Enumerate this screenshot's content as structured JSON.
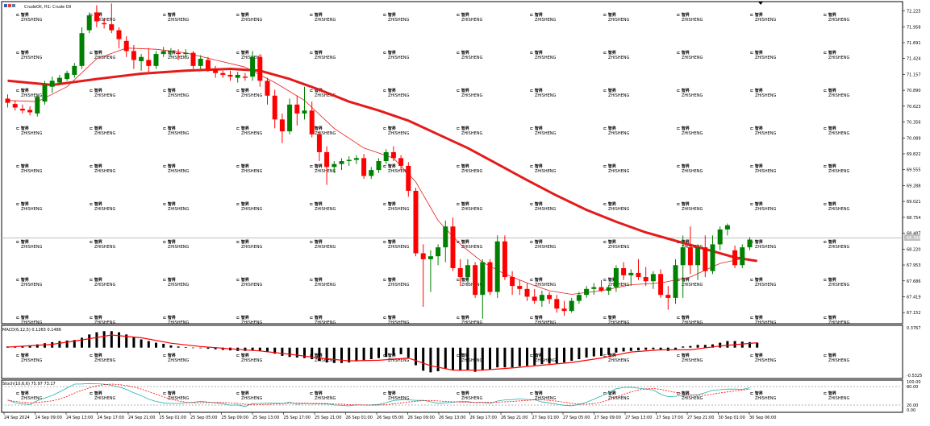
{
  "header": {
    "symbol_label": "CrudeOil, H1:  Crude Oil",
    "macd_label": "MACD(6,12,5) 0.1265 0.1486",
    "stoch_label": "Stoch(10,6,6) 75.97 73.17"
  },
  "watermark": {
    "text": "智昇",
    "subtext": "ZHISHENG"
  },
  "chart_data": {
    "type": "candlestick",
    "symbol": "CrudeOil",
    "timeframe": "H1",
    "ylim": [
      67.06,
      72.3
    ],
    "price_ticks": [
      "72.225",
      "71.958",
      "71.691",
      "71.424",
      "71.157",
      "70.890",
      "70.623",
      "70.356",
      "70.089",
      "69.822",
      "69.555",
      "69.288",
      "69.021",
      "68.754",
      "68.487",
      "68.220",
      "67.953",
      "67.686",
      "67.419",
      "67.152"
    ],
    "current_price": 68.39,
    "current_price_label": "68.390",
    "bull_color": "#008000",
    "bear_color": "#ff0000",
    "ma_color": "#e41b1b",
    "time_labels": [
      "24 Sep 2024",
      "24 Sep 09:00",
      "24 Sep 13:00",
      "24 Sep 17:00",
      "24 Sep 21:00",
      "25 Sep 01:00",
      "25 Sep 05:00",
      "25 Sep 09:00",
      "25 Sep 13:00",
      "25 Sep 17:00",
      "25 Sep 21:00",
      "26 Sep 01:00",
      "26 Sep 05:00",
      "26 Sep 09:00",
      "26 Sep 13:00",
      "26 Sep 17:00",
      "26 Sep 21:00",
      "27 Sep 01:00",
      "27 Sep 05:00",
      "27 Sep 09:00",
      "27 Sep 13:00",
      "27 Sep 17:00",
      "27 Sep 21:00",
      "30 Sep 01:00",
      "30 Sep 06:00"
    ],
    "candles": [
      {
        "o": 70.75,
        "h": 70.82,
        "l": 70.6,
        "c": 70.68
      },
      {
        "o": 70.66,
        "h": 70.72,
        "l": 70.55,
        "c": 70.6
      },
      {
        "o": 70.58,
        "h": 70.65,
        "l": 70.5,
        "c": 70.55
      },
      {
        "o": 70.56,
        "h": 70.62,
        "l": 70.47,
        "c": 70.52
      },
      {
        "o": 70.5,
        "h": 70.8,
        "l": 70.45,
        "c": 70.78
      },
      {
        "o": 70.7,
        "h": 71.05,
        "l": 70.65,
        "c": 70.98
      },
      {
        "o": 70.95,
        "h": 71.12,
        "l": 70.85,
        "c": 71.05
      },
      {
        "o": 71.02,
        "h": 71.15,
        "l": 70.98,
        "c": 71.1
      },
      {
        "o": 71.08,
        "h": 71.22,
        "l": 71.05,
        "c": 71.18
      },
      {
        "o": 71.15,
        "h": 71.35,
        "l": 71.1,
        "c": 71.3
      },
      {
        "o": 71.3,
        "h": 71.95,
        "l": 71.25,
        "c": 71.85
      },
      {
        "o": 71.9,
        "h": 72.2,
        "l": 71.85,
        "c": 72.15
      },
      {
        "o": 72.2,
        "h": 72.32,
        "l": 71.95,
        "c": 72.05
      },
      {
        "o": 72.02,
        "h": 72.1,
        "l": 71.93,
        "c": 72.0
      },
      {
        "o": 72.0,
        "h": 72.35,
        "l": 71.85,
        "c": 71.9
      },
      {
        "o": 71.9,
        "h": 71.95,
        "l": 71.6,
        "c": 71.75
      },
      {
        "o": 71.72,
        "h": 71.8,
        "l": 71.45,
        "c": 71.55
      },
      {
        "o": 71.55,
        "h": 71.65,
        "l": 71.25,
        "c": 71.4
      },
      {
        "o": 71.38,
        "h": 71.5,
        "l": 71.22,
        "c": 71.45
      },
      {
        "o": 71.4,
        "h": 71.6,
        "l": 71.2,
        "c": 71.3
      },
      {
        "o": 71.3,
        "h": 71.55,
        "l": 71.25,
        "c": 71.5
      },
      {
        "o": 71.5,
        "h": 71.62,
        "l": 71.45,
        "c": 71.55
      },
      {
        "o": 71.55,
        "h": 71.6,
        "l": 71.45,
        "c": 71.55
      },
      {
        "o": 71.52,
        "h": 71.58,
        "l": 71.4,
        "c": 71.5
      },
      {
        "o": 71.5,
        "h": 71.58,
        "l": 71.45,
        "c": 71.52
      },
      {
        "o": 71.52,
        "h": 71.55,
        "l": 71.25,
        "c": 71.3
      },
      {
        "o": 71.3,
        "h": 71.48,
        "l": 71.25,
        "c": 71.42
      },
      {
        "o": 71.4,
        "h": 71.45,
        "l": 71.2,
        "c": 71.25
      },
      {
        "o": 71.25,
        "h": 71.3,
        "l": 71.1,
        "c": 71.18
      },
      {
        "o": 71.18,
        "h": 71.22,
        "l": 71.1,
        "c": 71.15
      },
      {
        "o": 71.15,
        "h": 71.22,
        "l": 71.05,
        "c": 71.12
      },
      {
        "o": 71.1,
        "h": 71.2,
        "l": 71.02,
        "c": 71.15
      },
      {
        "o": 71.12,
        "h": 71.18,
        "l": 71.05,
        "c": 71.1
      },
      {
        "o": 71.12,
        "h": 71.55,
        "l": 71.05,
        "c": 71.45
      },
      {
        "o": 71.45,
        "h": 71.5,
        "l": 70.95,
        "c": 71.05
      },
      {
        "o": 71.05,
        "h": 71.1,
        "l": 70.65,
        "c": 70.8
      },
      {
        "o": 70.8,
        "h": 70.9,
        "l": 70.25,
        "c": 70.4
      },
      {
        "o": 70.4,
        "h": 70.5,
        "l": 70.0,
        "c": 70.2
      },
      {
        "o": 70.2,
        "h": 70.75,
        "l": 70.15,
        "c": 70.65
      },
      {
        "o": 70.65,
        "h": 70.8,
        "l": 70.3,
        "c": 70.5
      },
      {
        "o": 70.5,
        "h": 70.95,
        "l": 70.4,
        "c": 70.55
      },
      {
        "o": 70.55,
        "h": 70.7,
        "l": 70.1,
        "c": 70.15
      },
      {
        "o": 70.15,
        "h": 70.2,
        "l": 69.7,
        "c": 69.85
      },
      {
        "o": 69.85,
        "h": 69.95,
        "l": 69.3,
        "c": 69.6
      },
      {
        "o": 69.6,
        "h": 69.7,
        "l": 69.5,
        "c": 69.65
      },
      {
        "o": 69.65,
        "h": 69.75,
        "l": 69.55,
        "c": 69.7
      },
      {
        "o": 69.7,
        "h": 69.78,
        "l": 69.62,
        "c": 69.72
      },
      {
        "o": 69.72,
        "h": 69.8,
        "l": 69.65,
        "c": 69.75
      },
      {
        "o": 69.75,
        "h": 69.82,
        "l": 69.4,
        "c": 69.45
      },
      {
        "o": 69.45,
        "h": 69.6,
        "l": 69.4,
        "c": 69.55
      },
      {
        "o": 69.55,
        "h": 69.75,
        "l": 69.5,
        "c": 69.7
      },
      {
        "o": 69.7,
        "h": 69.9,
        "l": 69.65,
        "c": 69.85
      },
      {
        "o": 69.85,
        "h": 69.95,
        "l": 69.7,
        "c": 69.75
      },
      {
        "o": 69.75,
        "h": 69.8,
        "l": 69.55,
        "c": 69.62
      },
      {
        "o": 69.62,
        "h": 69.68,
        "l": 69.1,
        "c": 69.2
      },
      {
        "o": 69.2,
        "h": 69.25,
        "l": 68.1,
        "c": 68.15
      },
      {
        "o": 68.15,
        "h": 68.3,
        "l": 67.25,
        "c": 68.05
      },
      {
        "o": 68.05,
        "h": 68.2,
        "l": 67.5,
        "c": 68.1
      },
      {
        "o": 68.1,
        "h": 68.3,
        "l": 67.95,
        "c": 68.25
      },
      {
        "o": 68.25,
        "h": 68.7,
        "l": 68.0,
        "c": 68.6
      },
      {
        "o": 68.6,
        "h": 68.75,
        "l": 67.85,
        "c": 67.9
      },
      {
        "o": 67.9,
        "h": 68.05,
        "l": 67.6,
        "c": 67.75
      },
      {
        "o": 67.75,
        "h": 68.05,
        "l": 67.6,
        "c": 67.95
      },
      {
        "o": 67.95,
        "h": 68.0,
        "l": 67.4,
        "c": 67.45
      },
      {
        "o": 67.45,
        "h": 68.05,
        "l": 67.05,
        "c": 68.0
      },
      {
        "o": 68.0,
        "h": 68.05,
        "l": 67.45,
        "c": 67.5
      },
      {
        "o": 67.5,
        "h": 68.45,
        "l": 67.4,
        "c": 68.35
      },
      {
        "o": 68.35,
        "h": 68.45,
        "l": 67.7,
        "c": 67.75
      },
      {
        "o": 67.75,
        "h": 67.85,
        "l": 67.45,
        "c": 67.6
      },
      {
        "o": 67.6,
        "h": 67.7,
        "l": 67.45,
        "c": 67.55
      },
      {
        "o": 67.55,
        "h": 67.65,
        "l": 67.35,
        "c": 67.42
      },
      {
        "o": 67.42,
        "h": 67.55,
        "l": 67.3,
        "c": 67.35
      },
      {
        "o": 67.35,
        "h": 67.52,
        "l": 67.25,
        "c": 67.45
      },
      {
        "o": 67.45,
        "h": 67.5,
        "l": 67.3,
        "c": 67.38
      },
      {
        "o": 67.38,
        "h": 67.45,
        "l": 67.15,
        "c": 67.22
      },
      {
        "o": 67.22,
        "h": 67.35,
        "l": 67.1,
        "c": 67.18
      },
      {
        "o": 67.18,
        "h": 67.4,
        "l": 67.15,
        "c": 67.35
      },
      {
        "o": 67.35,
        "h": 67.5,
        "l": 67.3,
        "c": 67.45
      },
      {
        "o": 67.45,
        "h": 67.6,
        "l": 67.4,
        "c": 67.55
      },
      {
        "o": 67.55,
        "h": 67.65,
        "l": 67.45,
        "c": 67.58
      },
      {
        "o": 67.58,
        "h": 67.7,
        "l": 67.5,
        "c": 67.52
      },
      {
        "o": 67.52,
        "h": 67.6,
        "l": 67.45,
        "c": 67.58
      },
      {
        "o": 67.58,
        "h": 67.95,
        "l": 67.5,
        "c": 67.9
      },
      {
        "o": 67.9,
        "h": 68.0,
        "l": 67.7,
        "c": 67.78
      },
      {
        "o": 67.78,
        "h": 67.88,
        "l": 67.6,
        "c": 67.82
      },
      {
        "o": 67.82,
        "h": 68.05,
        "l": 67.7,
        "c": 67.75
      },
      {
        "o": 67.75,
        "h": 67.92,
        "l": 67.6,
        "c": 67.68
      },
      {
        "o": 67.68,
        "h": 67.85,
        "l": 67.55,
        "c": 67.8
      },
      {
        "o": 67.8,
        "h": 67.88,
        "l": 67.4,
        "c": 67.45
      },
      {
        "o": 67.45,
        "h": 67.6,
        "l": 67.2,
        "c": 67.4
      },
      {
        "o": 67.4,
        "h": 68.05,
        "l": 67.3,
        "c": 67.95
      },
      {
        "o": 67.95,
        "h": 68.45,
        "l": 67.4,
        "c": 68.25
      },
      {
        "o": 68.25,
        "h": 68.6,
        "l": 67.8,
        "c": 67.95
      },
      {
        "o": 67.95,
        "h": 68.3,
        "l": 67.7,
        "c": 68.25
      },
      {
        "o": 68.25,
        "h": 68.45,
        "l": 67.75,
        "c": 67.85
      },
      {
        "o": 67.85,
        "h": 68.45,
        "l": 67.8,
        "c": 68.3
      },
      {
        "o": 68.3,
        "h": 68.6,
        "l": 68.2,
        "c": 68.55
      },
      {
        "o": 68.55,
        "h": 68.65,
        "l": 68.45,
        "c": 68.62
      },
      {
        "o": 68.2,
        "h": 68.28,
        "l": 67.9,
        "c": 67.95
      },
      {
        "o": 67.95,
        "h": 68.3,
        "l": 67.9,
        "c": 68.25
      },
      {
        "o": 68.25,
        "h": 68.42,
        "l": 68.2,
        "c": 68.38
      }
    ],
    "ma_slow": [
      {
        "i": 0,
        "v": 71.05
      },
      {
        "i": 6,
        "v": 70.98
      },
      {
        "i": 12,
        "v": 71.08
      },
      {
        "i": 18,
        "v": 71.17
      },
      {
        "i": 24,
        "v": 71.22
      },
      {
        "i": 30,
        "v": 71.25
      },
      {
        "i": 34,
        "v": 71.22
      },
      {
        "i": 38,
        "v": 71.08
      },
      {
        "i": 42,
        "v": 70.9
      },
      {
        "i": 46,
        "v": 70.7
      },
      {
        "i": 50,
        "v": 70.55
      },
      {
        "i": 54,
        "v": 70.38
      },
      {
        "i": 58,
        "v": 70.15
      },
      {
        "i": 62,
        "v": 69.92
      },
      {
        "i": 66,
        "v": 69.65
      },
      {
        "i": 70,
        "v": 69.38
      },
      {
        "i": 74,
        "v": 69.12
      },
      {
        "i": 78,
        "v": 68.88
      },
      {
        "i": 82,
        "v": 68.68
      },
      {
        "i": 86,
        "v": 68.5
      },
      {
        "i": 90,
        "v": 68.36
      },
      {
        "i": 94,
        "v": 68.22
      },
      {
        "i": 98,
        "v": 68.08
      },
      {
        "i": 101,
        "v": 68.02
      }
    ],
    "ma_fast": [
      {
        "i": 0,
        "v": 70.72
      },
      {
        "i": 4,
        "v": 70.7
      },
      {
        "i": 8,
        "v": 70.95
      },
      {
        "i": 12,
        "v": 71.42
      },
      {
        "i": 16,
        "v": 71.6
      },
      {
        "i": 20,
        "v": 71.58
      },
      {
        "i": 24,
        "v": 71.52
      },
      {
        "i": 28,
        "v": 71.4
      },
      {
        "i": 32,
        "v": 71.28
      },
      {
        "i": 36,
        "v": 71.02
      },
      {
        "i": 40,
        "v": 70.72
      },
      {
        "i": 44,
        "v": 70.25
      },
      {
        "i": 48,
        "v": 69.92
      },
      {
        "i": 52,
        "v": 69.75
      },
      {
        "i": 55,
        "v": 69.35
      },
      {
        "i": 58,
        "v": 68.7
      },
      {
        "i": 61,
        "v": 68.3
      },
      {
        "i": 64,
        "v": 68.0
      },
      {
        "i": 67,
        "v": 67.8
      },
      {
        "i": 70,
        "v": 67.65
      },
      {
        "i": 73,
        "v": 67.52
      },
      {
        "i": 76,
        "v": 67.46
      },
      {
        "i": 80,
        "v": 67.52
      },
      {
        "i": 84,
        "v": 67.62
      },
      {
        "i": 88,
        "v": 67.65
      },
      {
        "i": 92,
        "v": 67.75
      },
      {
        "i": 96,
        "v": 67.98
      },
      {
        "i": 99,
        "v": 68.06
      },
      {
        "i": 101,
        "v": 68.02
      }
    ],
    "macd": {
      "label": "MACD(6,12,5)",
      "main": 0.1265,
      "signal": 0.1486,
      "ticks": [
        "0.3767",
        "-0.5325"
      ],
      "ylim": [
        -0.5325,
        0.3767
      ],
      "histogram": [
        0.02,
        0.02,
        0.03,
        0.04,
        0.06,
        0.08,
        0.1,
        0.12,
        0.13,
        0.14,
        0.18,
        0.24,
        0.28,
        0.3,
        0.3,
        0.28,
        0.24,
        0.2,
        0.15,
        0.12,
        0.09,
        0.07,
        0.04,
        0.02,
        0.01,
        0.0,
        -0.01,
        -0.02,
        -0.03,
        -0.04,
        -0.05,
        -0.06,
        -0.06,
        -0.05,
        -0.06,
        -0.08,
        -0.11,
        -0.15,
        -0.17,
        -0.18,
        -0.19,
        -0.21,
        -0.24,
        -0.27,
        -0.28,
        -0.28,
        -0.27,
        -0.25,
        -0.23,
        -0.21,
        -0.19,
        -0.17,
        -0.14,
        -0.12,
        -0.18,
        -0.32,
        -0.42,
        -0.45,
        -0.43,
        -0.38,
        -0.4,
        -0.42,
        -0.41,
        -0.44,
        -0.41,
        -0.4,
        -0.36,
        -0.36,
        -0.36,
        -0.34,
        -0.33,
        -0.32,
        -0.3,
        -0.29,
        -0.29,
        -0.27,
        -0.24,
        -0.21,
        -0.18,
        -0.16,
        -0.15,
        -0.13,
        -0.09,
        -0.07,
        -0.06,
        -0.05,
        -0.04,
        -0.03,
        -0.05,
        -0.06,
        -0.03,
        0.02,
        0.03,
        0.05,
        0.05,
        0.06,
        0.09,
        0.12,
        0.12,
        0.11,
        0.1,
        0.09
      ],
      "signal_line": [
        {
          "i": 0,
          "v": 0.01
        },
        {
          "i": 6,
          "v": 0.06
        },
        {
          "i": 10,
          "v": 0.14
        },
        {
          "i": 14,
          "v": 0.23
        },
        {
          "i": 18,
          "v": 0.18
        },
        {
          "i": 22,
          "v": 0.08
        },
        {
          "i": 26,
          "v": 0.02
        },
        {
          "i": 30,
          "v": -0.02
        },
        {
          "i": 34,
          "v": -0.06
        },
        {
          "i": 38,
          "v": -0.12
        },
        {
          "i": 42,
          "v": -0.19
        },
        {
          "i": 46,
          "v": -0.24
        },
        {
          "i": 50,
          "v": -0.23
        },
        {
          "i": 54,
          "v": -0.19
        },
        {
          "i": 57,
          "v": -0.33
        },
        {
          "i": 60,
          "v": -0.41
        },
        {
          "i": 64,
          "v": -0.41
        },
        {
          "i": 68,
          "v": -0.37
        },
        {
          "i": 72,
          "v": -0.32
        },
        {
          "i": 76,
          "v": -0.27
        },
        {
          "i": 80,
          "v": -0.19
        },
        {
          "i": 84,
          "v": -0.08
        },
        {
          "i": 88,
          "v": -0.04
        },
        {
          "i": 92,
          "v": -0.04
        },
        {
          "i": 96,
          "v": 0.03
        },
        {
          "i": 101,
          "v": 0.09
        }
      ]
    },
    "stochastic": {
      "label": "Stoch(10,6,6)",
      "k": 75.97,
      "d": 73.17,
      "ticks": [
        "100.00",
        "80.00",
        "20.00",
        "0.00"
      ],
      "ylim": [
        0,
        100
      ],
      "k_color": "#20b2aa",
      "d_color": "#ff0000"
    }
  }
}
